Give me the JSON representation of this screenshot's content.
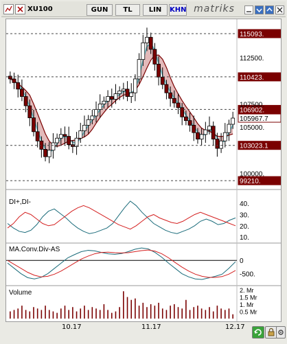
{
  "toolbar": {
    "symbol": "XU100",
    "period_day": "GUN",
    "scale_tl": "TL",
    "scale_lin": "LIN",
    "mode_khn": "KHN",
    "brand": "matriks"
  },
  "main_chart": {
    "y_ticks": [
      "112500.",
      "107500.",
      "105000.",
      "100000."
    ],
    "price_tags": [
      {
        "label": "115093.",
        "value": 115093,
        "style": "dark"
      },
      {
        "label": "110423.",
        "value": 110423,
        "style": "dark"
      },
      {
        "label": "106902.",
        "value": 106902,
        "style": "dark"
      },
      {
        "label": "105967.7",
        "value": 105967.7,
        "style": "light"
      },
      {
        "label": "103023.1",
        "value": 103023.1,
        "style": "dark"
      },
      {
        "label": "99210.",
        "value": 99210,
        "style": "dark"
      }
    ],
    "ylim": [
      98700,
      116500
    ]
  },
  "di_panel": {
    "title": "DI+,DI-",
    "y_ticks": [
      "40.",
      "30.",
      "20.",
      "10."
    ],
    "ylim": [
      7,
      45
    ]
  },
  "macd_panel": {
    "title": "MA.Conv.Div-AS",
    "y_ticks": [
      "0",
      "-500."
    ],
    "ylim": [
      -900,
      550
    ]
  },
  "volume_panel": {
    "title": "Volume",
    "y_ticks": [
      "2. Mr",
      "1.5 Mr",
      "1. Mr",
      "0.5 Mr"
    ],
    "ylim": [
      0,
      2.1
    ]
  },
  "x_axis": {
    "labels": [
      "10.17",
      "11.17",
      "12.17"
    ]
  },
  "colors": {
    "up": "#ffffff",
    "down": "#7a0000",
    "band_fill": "#d9a3a3",
    "band_line_up": "#5fb8c3",
    "band_line_down": "#7a0000",
    "di_plus": "#1a6b7a",
    "di_minus": "#d42020",
    "macd": "#1a6b7a",
    "signal": "#d42020",
    "grid_dash": "#444444"
  }
}
